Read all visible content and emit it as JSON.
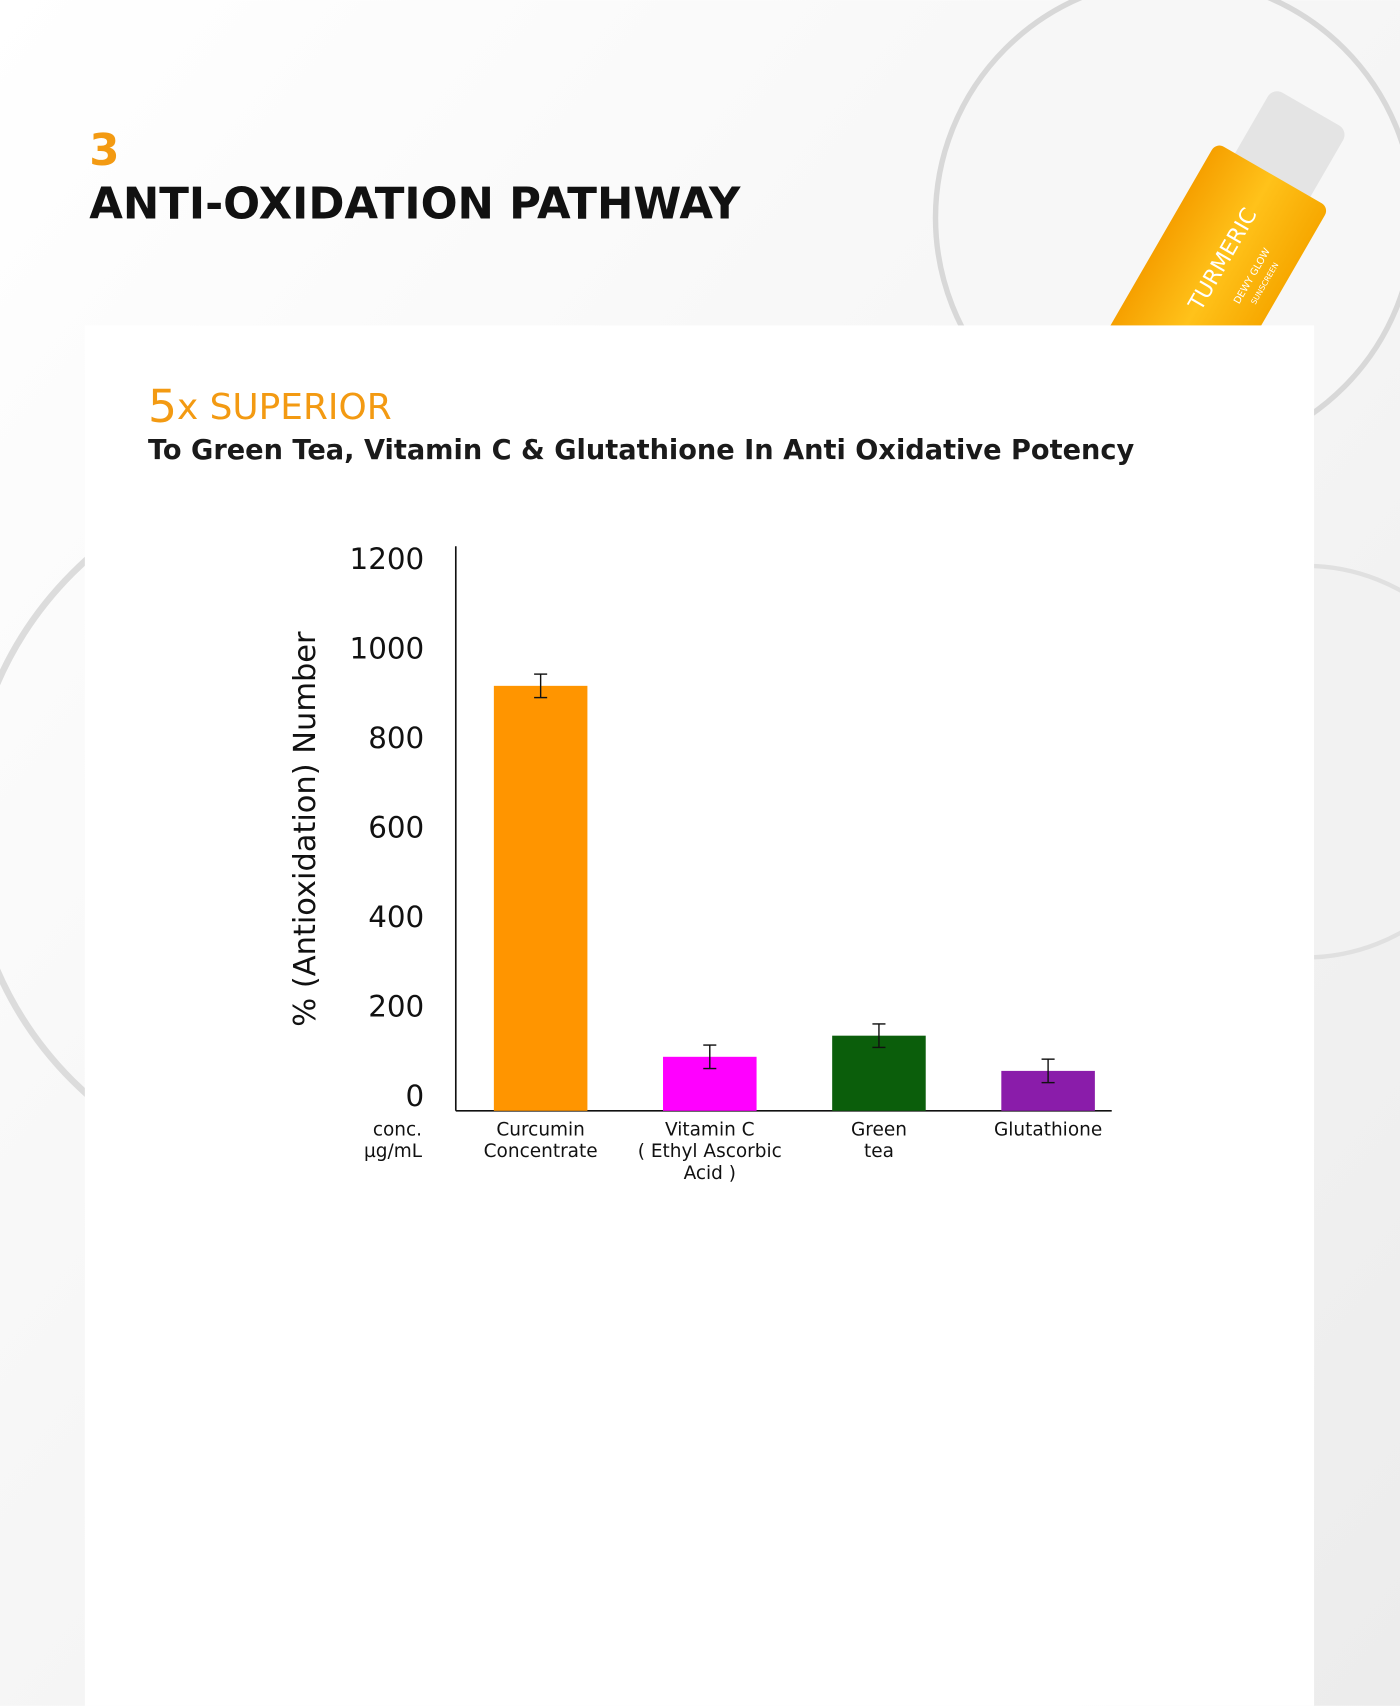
{
  "header": {
    "step": "3",
    "title": "ANTI-OXIDATION PATHWAY"
  },
  "product": {
    "brand": "TURMERIC",
    "line1": "DEWY GLOW",
    "line2": "SUNSCREEN"
  },
  "chart_data": {
    "type": "bar",
    "badge": {
      "number": "5",
      "text": "x SUPERIOR"
    },
    "subtitle": "To Green Tea, Vitamin C & Glutathione In Anti Oxidative Potency",
    "y_label": "% (Antioxidation) Number",
    "x_label": [
      "conc.",
      "µg/mL"
    ],
    "categories": [
      [
        "Curcumin",
        "Concentrate"
      ],
      [
        "Vitamin C",
        "( Ethyl Ascorbic",
        "Acid )"
      ],
      [
        "Green",
        "tea"
      ],
      [
        "Glutathione"
      ]
    ],
    "values": [
      905,
      115,
      160,
      85
    ],
    "errors": [
      25,
      25,
      25,
      25
    ],
    "colors": [
      "#ff9500",
      "#ff00ff",
      "#0b5e0b",
      "#8a1caa"
    ],
    "ylim": [
      0,
      1200
    ],
    "yticks": [
      0,
      200,
      400,
      600,
      800,
      1000,
      1200
    ],
    "grid": false
  }
}
